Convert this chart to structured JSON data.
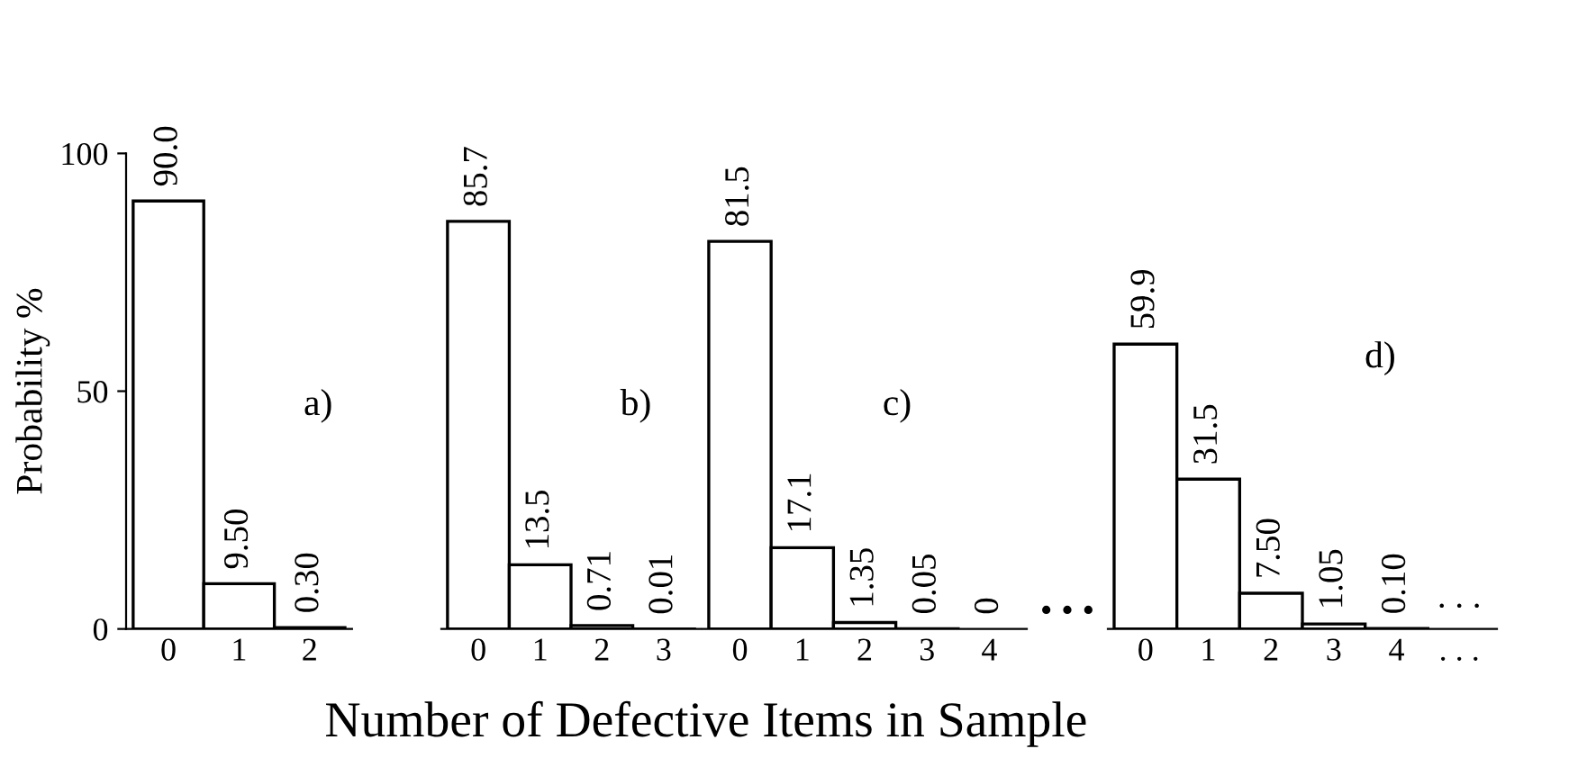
{
  "chart_data": [
    {
      "type": "bar",
      "categories": [
        "0",
        "1",
        "2"
      ],
      "values": [
        90.0,
        9.5,
        0.3
      ],
      "value_labels": [
        "90.0",
        "9.50",
        "0.30"
      ],
      "color": "#ffffff",
      "ylim": [
        0,
        100
      ],
      "yticks": [
        0,
        50,
        100
      ],
      "ylabel": "Probability %",
      "xlabel": "Number of Defective Items in Sample",
      "annotations": [
        "a)"
      ],
      "grid": false,
      "legend": false
    },
    {
      "type": "bar",
      "categories": [
        "0",
        "1",
        "2",
        "3"
      ],
      "values": [
        85.7,
        13.5,
        0.71,
        0.01
      ],
      "value_labels": [
        "85.7",
        "13.5",
        "0.71",
        "0.01"
      ],
      "color": "#ffffff",
      "ylim": [
        0,
        100
      ],
      "tick_labels": "x",
      "annotations": [
        "b)"
      ],
      "grid": false,
      "legend": false
    },
    {
      "type": "bar",
      "categories": [
        "0",
        "1",
        "2",
        "3",
        "4"
      ],
      "values": [
        81.5,
        17.1,
        1.35,
        0.05,
        0
      ],
      "value_labels": [
        "81.5",
        "17.1",
        "1.35",
        "0.05",
        "0"
      ],
      "color": "#ffffff",
      "ylim": [
        0,
        100
      ],
      "tick_labels": "x",
      "annotations": [
        "c)",
        "• • •"
      ],
      "grid": false,
      "legend": false
    },
    {
      "type": "bar",
      "categories": [
        "0",
        "1",
        "2",
        "3",
        "4",
        ". . ."
      ],
      "values": [
        59.9,
        31.5,
        7.5,
        1.05,
        0.1,
        null
      ],
      "value_labels": [
        "59.9",
        "31.5",
        "7.50",
        "1.05",
        "0.10",
        ". . ."
      ],
      "color": "#ffffff",
      "ylim": [
        0,
        100
      ],
      "tick_labels": "x",
      "annotations": [
        "d)"
      ],
      "grid": false,
      "legend": false
    }
  ]
}
